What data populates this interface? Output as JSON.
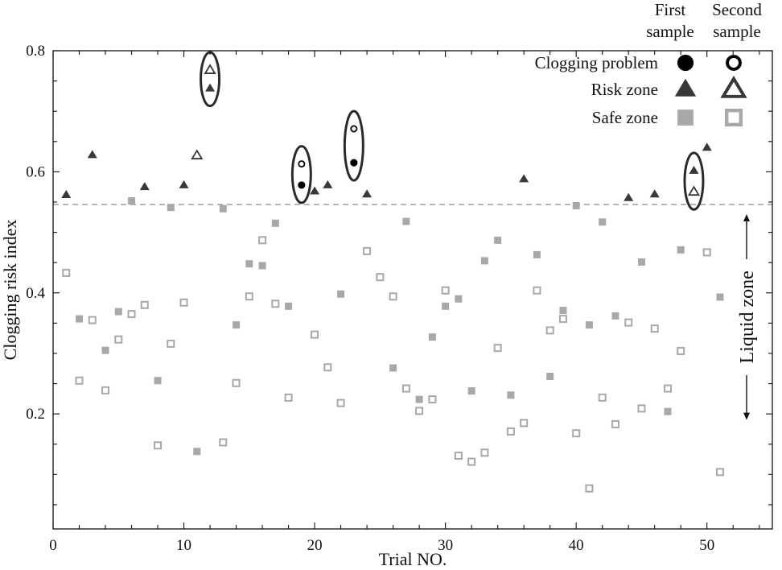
{
  "chart_data": {
    "type": "scatter",
    "xlabel": "Trial NO.",
    "ylabel": "Clogging risk index",
    "xlim": [
      0,
      55
    ],
    "ylim": [
      0.01,
      0.8
    ],
    "x_ticks": [
      "0",
      "10",
      "20",
      "30",
      "40",
      "50"
    ],
    "y_ticks": [
      "0.2",
      "0.4",
      "0.6",
      "0.8"
    ],
    "threshold": 0.546,
    "legend": {
      "headers": [
        [
          "First",
          "sample"
        ],
        [
          "Second",
          "sample"
        ]
      ],
      "rows": [
        "Clogging problem",
        "Risk zone",
        "Safe zone"
      ]
    },
    "zone_label": "Liquid zone",
    "zone_range": [
      0.19,
      0.53
    ],
    "highlighted_trials": [
      12,
      19,
      23,
      49
    ],
    "series": [
      {
        "name": "First sample - Clogging problem",
        "sample": "first",
        "category": "clogging",
        "points": [
          [
            19,
            0.578
          ],
          [
            23,
            0.615
          ]
        ]
      },
      {
        "name": "Second sample - Clogging problem",
        "sample": "second",
        "category": "clogging",
        "points": [
          [
            19,
            0.613
          ],
          [
            23,
            0.671
          ]
        ]
      },
      {
        "name": "First sample - Risk zone",
        "sample": "first",
        "category": "risk",
        "points": [
          [
            1,
            0.562
          ],
          [
            3,
            0.628
          ],
          [
            7,
            0.575
          ],
          [
            10,
            0.578
          ],
          [
            12,
            0.738
          ],
          [
            20,
            0.568
          ],
          [
            21,
            0.578
          ],
          [
            24,
            0.563
          ],
          [
            36,
            0.588
          ],
          [
            44,
            0.557
          ],
          [
            46,
            0.563
          ],
          [
            49,
            0.602
          ],
          [
            50,
            0.64
          ]
        ]
      },
      {
        "name": "Second sample - Risk zone",
        "sample": "second",
        "category": "risk",
        "points": [
          [
            11,
            0.627
          ],
          [
            12,
            0.768
          ],
          [
            49,
            0.567
          ]
        ]
      },
      {
        "name": "First sample - Safe zone",
        "sample": "first",
        "category": "safe",
        "points": [
          [
            2,
            0.357
          ],
          [
            4,
            0.305
          ],
          [
            5,
            0.369
          ],
          [
            6,
            0.552
          ],
          [
            8,
            0.255
          ],
          [
            9,
            0.541
          ],
          [
            11,
            0.138
          ],
          [
            13,
            0.539
          ],
          [
            14,
            0.347
          ],
          [
            15,
            0.448
          ],
          [
            16,
            0.445
          ],
          [
            17,
            0.515
          ],
          [
            18,
            0.378
          ],
          [
            22,
            0.398
          ],
          [
            26,
            0.276
          ],
          [
            27,
            0.518
          ],
          [
            28,
            0.224
          ],
          [
            29,
            0.327
          ],
          [
            30,
            0.378
          ],
          [
            31,
            0.39
          ],
          [
            32,
            0.238
          ],
          [
            33,
            0.453
          ],
          [
            34,
            0.487
          ],
          [
            35,
            0.231
          ],
          [
            37,
            0.463
          ],
          [
            38,
            0.262
          ],
          [
            39,
            0.371
          ],
          [
            40,
            0.544
          ],
          [
            41,
            0.347
          ],
          [
            42,
            0.517
          ],
          [
            43,
            0.362
          ],
          [
            45,
            0.451
          ],
          [
            47,
            0.204
          ],
          [
            48,
            0.471
          ],
          [
            51,
            0.393
          ]
        ]
      },
      {
        "name": "Second sample - Safe zone",
        "sample": "second",
        "category": "safe",
        "points": [
          [
            1,
            0.433
          ],
          [
            2,
            0.255
          ],
          [
            3,
            0.355
          ],
          [
            4,
            0.239
          ],
          [
            5,
            0.323
          ],
          [
            6,
            0.365
          ],
          [
            7,
            0.38
          ],
          [
            8,
            0.148
          ],
          [
            9,
            0.316
          ],
          [
            10,
            0.384
          ],
          [
            13,
            0.153
          ],
          [
            14,
            0.251
          ],
          [
            15,
            0.394
          ],
          [
            16,
            0.487
          ],
          [
            17,
            0.382
          ],
          [
            18,
            0.227
          ],
          [
            20,
            0.331
          ],
          [
            21,
            0.277
          ],
          [
            22,
            0.218
          ],
          [
            24,
            0.469
          ],
          [
            25,
            0.426
          ],
          [
            26,
            0.394
          ],
          [
            27,
            0.242
          ],
          [
            28,
            0.205
          ],
          [
            29,
            0.224
          ],
          [
            30,
            0.404
          ],
          [
            31,
            0.131
          ],
          [
            32,
            0.121
          ],
          [
            33,
            0.136
          ],
          [
            34,
            0.309
          ],
          [
            35,
            0.171
          ],
          [
            36,
            0.185
          ],
          [
            37,
            0.404
          ],
          [
            38,
            0.338
          ],
          [
            39,
            0.357
          ],
          [
            40,
            0.168
          ],
          [
            41,
            0.077
          ],
          [
            42,
            0.227
          ],
          [
            43,
            0.183
          ],
          [
            44,
            0.351
          ],
          [
            45,
            0.209
          ],
          [
            46,
            0.341
          ],
          [
            47,
            0.242
          ],
          [
            48,
            0.304
          ],
          [
            50,
            0.467
          ],
          [
            51,
            0.104
          ]
        ]
      }
    ],
    "colors": {
      "axis": "#111111",
      "clogging": "#000000",
      "risk": "#383838",
      "safe": "#a8a8a8",
      "threshold": "#8a8a8a",
      "ellipse": "#2a2a2a"
    }
  }
}
